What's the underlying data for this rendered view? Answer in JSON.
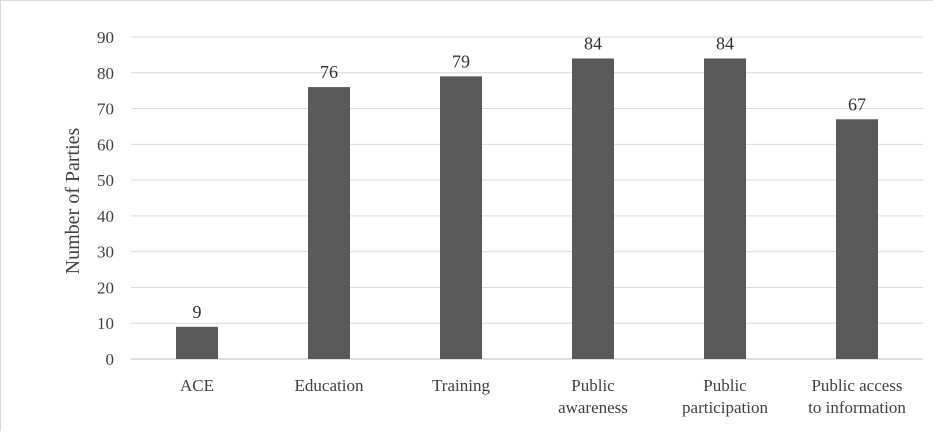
{
  "chart_data": {
    "type": "bar",
    "categories": [
      [
        "ACE"
      ],
      [
        "Education"
      ],
      [
        "Training"
      ],
      [
        "Public",
        "awareness"
      ],
      [
        "Public",
        "participation"
      ],
      [
        "Public access",
        "to information"
      ]
    ],
    "values": [
      9,
      76,
      79,
      84,
      84,
      67
    ],
    "data_labels": [
      "9",
      "76",
      "79",
      "84",
      "84",
      "67"
    ],
    "title": "",
    "xlabel": "",
    "ylabel": "Number of Parties",
    "ylim": [
      0,
      90
    ],
    "yticks": [
      "0",
      "10",
      "20",
      "30",
      "40",
      "50",
      "60",
      "70",
      "80",
      "90"
    ],
    "grid": true,
    "legend": "none",
    "bar_color": "#595959",
    "grid_color": "#d9d9d9"
  }
}
